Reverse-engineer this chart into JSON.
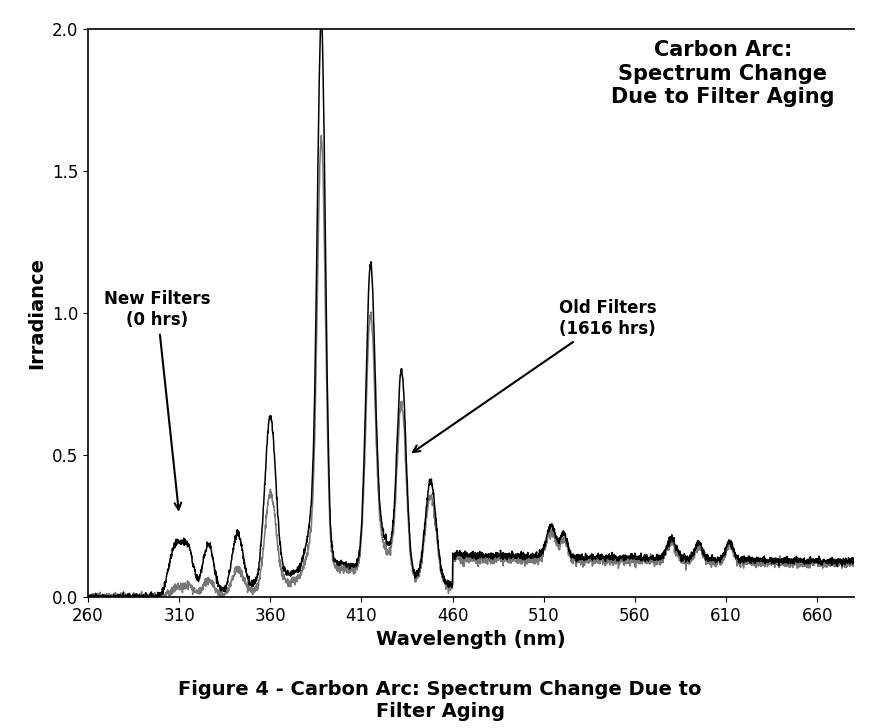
{
  "title": "Carbon Arc:\nSpectrum Change\nDue to Filter Aging",
  "xlabel": "Wavelength (nm)",
  "ylabel": "Irradiance",
  "caption": "Figure 4 - Carbon Arc: Spectrum Change Due to\nFilter Aging",
  "xlim": [
    260,
    680
  ],
  "ylim": [
    0,
    2.0
  ],
  "xticks": [
    260,
    310,
    360,
    410,
    460,
    510,
    560,
    610,
    660
  ],
  "yticks": [
    0,
    0.5,
    1.0,
    1.5,
    2.0
  ],
  "new_label_title": "New Filters",
  "new_label_sub": "(0 hrs)",
  "old_label_title": "Old Filters",
  "old_label_sub": "(1616 hrs)",
  "line_color_new": "#000000",
  "line_color_old": "#777777",
  "background": "#ffffff",
  "title_fontsize": 15,
  "axis_label_fontsize": 14,
  "tick_fontsize": 12,
  "caption_fontsize": 14,
  "annotation_fontsize": 12
}
